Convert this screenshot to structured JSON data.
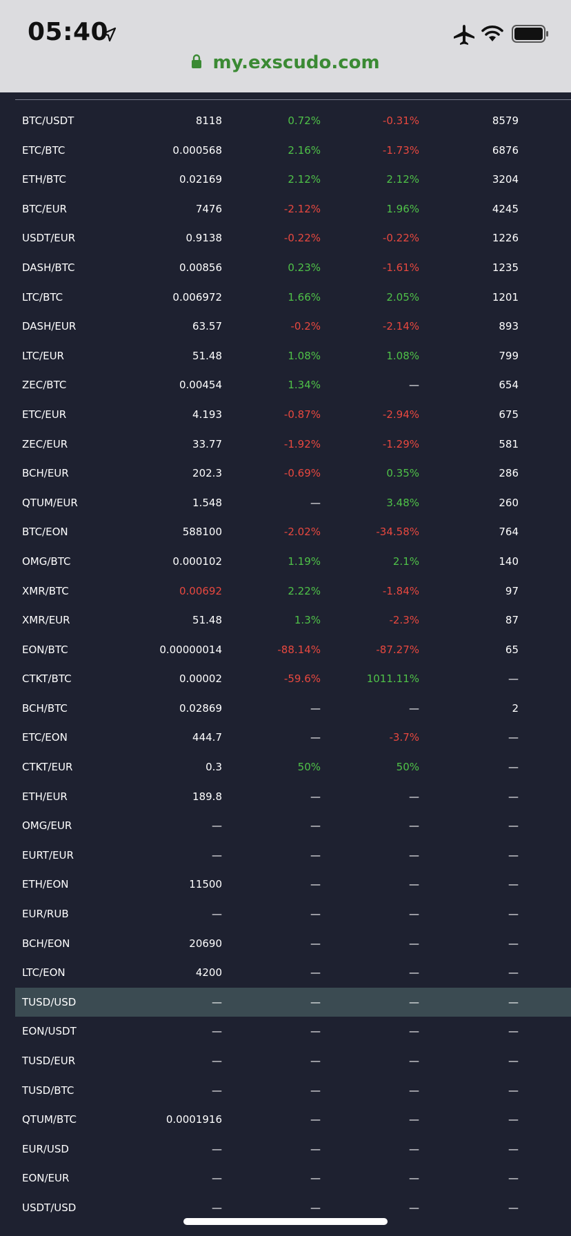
{
  "status_bar": {
    "time": "05:40",
    "url": "my.exscudo.com",
    "icons": [
      "location-arrow-icon",
      "airplane-icon",
      "wifi-icon",
      "battery-icon",
      "lock-icon"
    ]
  },
  "colors": {
    "positive": "#4fc248",
    "negative": "#e8483f",
    "neutral": "#ffffff",
    "background": "#1e2130",
    "highlight_row": "#3b4b52",
    "url": "#3b8a34"
  },
  "table": {
    "rows": [
      {
        "pair": "BTC/USDT",
        "price": "8118",
        "price_color": "neu",
        "change1": "0.72%",
        "change1_color": "pos",
        "change2": "-0.31%",
        "change2_color": "neg",
        "volume": "8579"
      },
      {
        "pair": "ETC/BTC",
        "price": "0.000568",
        "price_color": "neu",
        "change1": "2.16%",
        "change1_color": "pos",
        "change2": "-1.73%",
        "change2_color": "neg",
        "volume": "6876"
      },
      {
        "pair": "ETH/BTC",
        "price": "0.02169",
        "price_color": "neu",
        "change1": "2.12%",
        "change1_color": "pos",
        "change2": "2.12%",
        "change2_color": "pos",
        "volume": "3204"
      },
      {
        "pair": "BTC/EUR",
        "price": "7476",
        "price_color": "neu",
        "change1": "-2.12%",
        "change1_color": "neg",
        "change2": "1.96%",
        "change2_color": "pos",
        "volume": "4245"
      },
      {
        "pair": "USDT/EUR",
        "price": "0.9138",
        "price_color": "neu",
        "change1": "-0.22%",
        "change1_color": "neg",
        "change2": "-0.22%",
        "change2_color": "neg",
        "volume": "1226"
      },
      {
        "pair": "DASH/BTC",
        "price": "0.00856",
        "price_color": "neu",
        "change1": "0.23%",
        "change1_color": "pos",
        "change2": "-1.61%",
        "change2_color": "neg",
        "volume": "1235"
      },
      {
        "pair": "LTC/BTC",
        "price": "0.006972",
        "price_color": "neu",
        "change1": "1.66%",
        "change1_color": "pos",
        "change2": "2.05%",
        "change2_color": "pos",
        "volume": "1201"
      },
      {
        "pair": "DASH/EUR",
        "price": "63.57",
        "price_color": "neu",
        "change1": "-0.2%",
        "change1_color": "neg",
        "change2": "-2.14%",
        "change2_color": "neg",
        "volume": "893"
      },
      {
        "pair": "LTC/EUR",
        "price": "51.48",
        "price_color": "neu",
        "change1": "1.08%",
        "change1_color": "pos",
        "change2": "1.08%",
        "change2_color": "pos",
        "volume": "799"
      },
      {
        "pair": "ZEC/BTC",
        "price": "0.00454",
        "price_color": "neu",
        "change1": "1.34%",
        "change1_color": "pos",
        "change2": "—",
        "change2_color": "neu",
        "volume": "654"
      },
      {
        "pair": "ETC/EUR",
        "price": "4.193",
        "price_color": "neu",
        "change1": "-0.87%",
        "change1_color": "neg",
        "change2": "-2.94%",
        "change2_color": "neg",
        "volume": "675"
      },
      {
        "pair": "ZEC/EUR",
        "price": "33.77",
        "price_color": "neu",
        "change1": "-1.92%",
        "change1_color": "neg",
        "change2": "-1.29%",
        "change2_color": "neg",
        "volume": "581"
      },
      {
        "pair": "BCH/EUR",
        "price": "202.3",
        "price_color": "neu",
        "change1": "-0.69%",
        "change1_color": "neg",
        "change2": "0.35%",
        "change2_color": "pos",
        "volume": "286"
      },
      {
        "pair": "QTUM/EUR",
        "price": "1.548",
        "price_color": "neu",
        "change1": "—",
        "change1_color": "neu",
        "change2": "3.48%",
        "change2_color": "pos",
        "volume": "260"
      },
      {
        "pair": "BTC/EON",
        "price": "588100",
        "price_color": "neu",
        "change1": "-2.02%",
        "change1_color": "neg",
        "change2": "-34.58%",
        "change2_color": "neg",
        "volume": "764"
      },
      {
        "pair": "OMG/BTC",
        "price": "0.000102",
        "price_color": "neu",
        "change1": "1.19%",
        "change1_color": "pos",
        "change2": "2.1%",
        "change2_color": "pos",
        "volume": "140"
      },
      {
        "pair": "XMR/BTC",
        "price": "0.00692",
        "price_color": "neg",
        "change1": "2.22%",
        "change1_color": "pos",
        "change2": "-1.84%",
        "change2_color": "neg",
        "volume": "97"
      },
      {
        "pair": "XMR/EUR",
        "price": "51.48",
        "price_color": "neu",
        "change1": "1.3%",
        "change1_color": "pos",
        "change2": "-2.3%",
        "change2_color": "neg",
        "volume": "87"
      },
      {
        "pair": "EON/BTC",
        "price": "0.00000014",
        "price_color": "neu",
        "change1": "-88.14%",
        "change1_color": "neg",
        "change2": "-87.27%",
        "change2_color": "neg",
        "volume": "65"
      },
      {
        "pair": "CTKT/BTC",
        "price": "0.00002",
        "price_color": "neu",
        "change1": "-59.6%",
        "change1_color": "neg",
        "change2": "1011.11%",
        "change2_color": "pos",
        "volume": "—"
      },
      {
        "pair": "BCH/BTC",
        "price": "0.02869",
        "price_color": "neu",
        "change1": "—",
        "change1_color": "neu",
        "change2": "—",
        "change2_color": "neu",
        "volume": "2"
      },
      {
        "pair": "ETC/EON",
        "price": "444.7",
        "price_color": "neu",
        "change1": "—",
        "change1_color": "neu",
        "change2": "-3.7%",
        "change2_color": "neg",
        "volume": "—"
      },
      {
        "pair": "CTKT/EUR",
        "price": "0.3",
        "price_color": "neu",
        "change1": "50%",
        "change1_color": "pos",
        "change2": "50%",
        "change2_color": "pos",
        "volume": "—"
      },
      {
        "pair": "ETH/EUR",
        "price": "189.8",
        "price_color": "neu",
        "change1": "—",
        "change1_color": "neu",
        "change2": "—",
        "change2_color": "neu",
        "volume": "—"
      },
      {
        "pair": "OMG/EUR",
        "price": "—",
        "price_color": "neu",
        "change1": "—",
        "change1_color": "neu",
        "change2": "—",
        "change2_color": "neu",
        "volume": "—"
      },
      {
        "pair": "EURT/EUR",
        "price": "—",
        "price_color": "neu",
        "change1": "—",
        "change1_color": "neu",
        "change2": "—",
        "change2_color": "neu",
        "volume": "—"
      },
      {
        "pair": "ETH/EON",
        "price": "11500",
        "price_color": "neu",
        "change1": "—",
        "change1_color": "neu",
        "change2": "—",
        "change2_color": "neu",
        "volume": "—"
      },
      {
        "pair": "EUR/RUB",
        "price": "—",
        "price_color": "neu",
        "change1": "—",
        "change1_color": "neu",
        "change2": "—",
        "change2_color": "neu",
        "volume": "—"
      },
      {
        "pair": "BCH/EON",
        "price": "20690",
        "price_color": "neu",
        "change1": "—",
        "change1_color": "neu",
        "change2": "—",
        "change2_color": "neu",
        "volume": "—"
      },
      {
        "pair": "LTC/EON",
        "price": "4200",
        "price_color": "neu",
        "change1": "—",
        "change1_color": "neu",
        "change2": "—",
        "change2_color": "neu",
        "volume": "—"
      },
      {
        "pair": "TUSD/USD",
        "price": "—",
        "price_color": "neu",
        "change1": "—",
        "change1_color": "neu",
        "change2": "—",
        "change2_color": "neu",
        "volume": "—",
        "highlighted": true
      },
      {
        "pair": "EON/USDT",
        "price": "—",
        "price_color": "neu",
        "change1": "—",
        "change1_color": "neu",
        "change2": "—",
        "change2_color": "neu",
        "volume": "—"
      },
      {
        "pair": "TUSD/EUR",
        "price": "—",
        "price_color": "neu",
        "change1": "—",
        "change1_color": "neu",
        "change2": "—",
        "change2_color": "neu",
        "volume": "—"
      },
      {
        "pair": "TUSD/BTC",
        "price": "—",
        "price_color": "neu",
        "change1": "—",
        "change1_color": "neu",
        "change2": "—",
        "change2_color": "neu",
        "volume": "—"
      },
      {
        "pair": "QTUM/BTC",
        "price": "0.0001916",
        "price_color": "neu",
        "change1": "—",
        "change1_color": "neu",
        "change2": "—",
        "change2_color": "neu",
        "volume": "—"
      },
      {
        "pair": "EUR/USD",
        "price": "—",
        "price_color": "neu",
        "change1": "—",
        "change1_color": "neu",
        "change2": "—",
        "change2_color": "neu",
        "volume": "—"
      },
      {
        "pair": "EON/EUR",
        "price": "—",
        "price_color": "neu",
        "change1": "—",
        "change1_color": "neu",
        "change2": "—",
        "change2_color": "neu",
        "volume": "—"
      },
      {
        "pair": "USDT/USD",
        "price": "—",
        "price_color": "neu",
        "change1": "—",
        "change1_color": "neu",
        "change2": "—",
        "change2_color": "neu",
        "volume": "—"
      }
    ]
  }
}
